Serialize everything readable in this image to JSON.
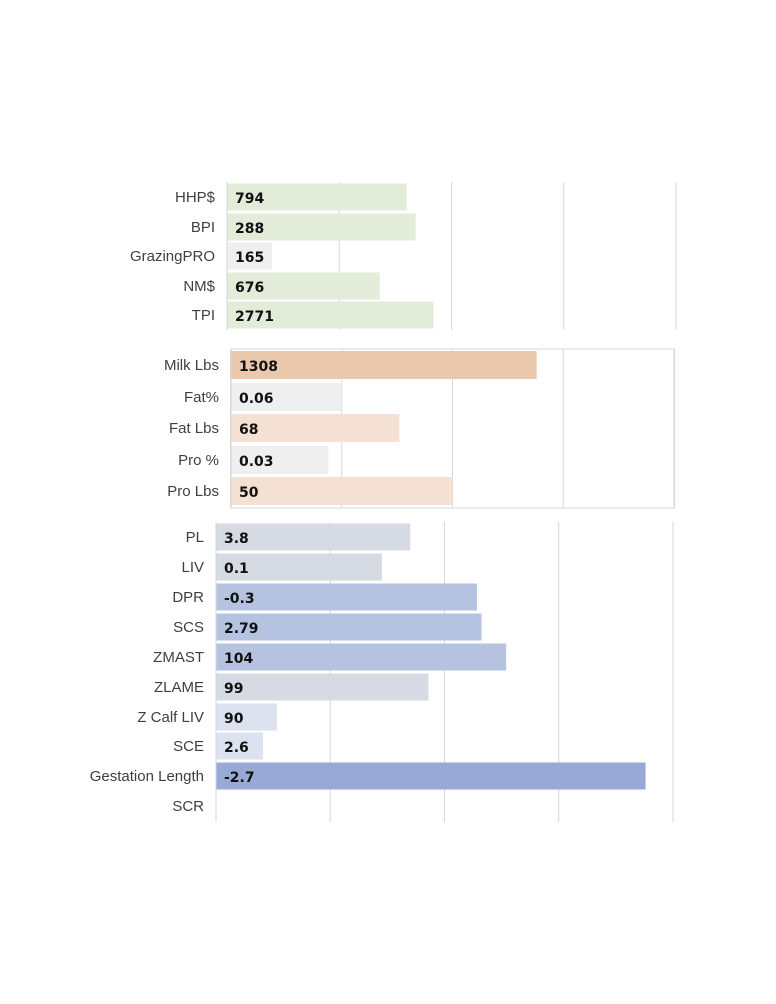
{
  "chart_data": [
    {
      "type": "bar",
      "orientation": "horizontal",
      "grid": true,
      "categories": [
        "HHP$",
        "BPI",
        "GrazingPRO",
        "NM$",
        "TPI"
      ],
      "values": [
        794,
        288,
        165,
        676,
        2771
      ],
      "labels": [
        "794",
        "288",
        "165",
        "676",
        "2771"
      ],
      "bar_fraction": [
        0.4,
        0.42,
        0.1,
        0.34,
        0.46
      ],
      "colors": [
        "#e2ecd9",
        "#e2ecd9",
        "#efefef",
        "#e2ecd9",
        "#e2ecd9"
      ]
    },
    {
      "type": "bar",
      "orientation": "horizontal",
      "grid": true,
      "categories": [
        "Milk Lbs",
        "Fat%",
        "Fat Lbs",
        "Pro %",
        "Pro Lbs"
      ],
      "values": [
        1308,
        0.06,
        68,
        0.03,
        50
      ],
      "labels": [
        "1308",
        "0.06",
        "68",
        "0.03",
        "50"
      ],
      "bar_fraction": [
        0.69,
        0.25,
        0.38,
        0.22,
        0.5
      ],
      "colors": [
        "#eac8ab",
        "#efefef",
        "#f4e1d3",
        "#efefef",
        "#f4e1d3"
      ]
    },
    {
      "type": "bar",
      "orientation": "horizontal",
      "grid": true,
      "categories": [
        "PL",
        "LIV",
        "DPR",
        "SCS",
        "ZMAST",
        "ZLAME",
        "Z Calf LIV",
        "SCE",
        "Gestation Length",
        "SCR"
      ],
      "values": [
        3.8,
        0.1,
        -0.3,
        2.79,
        104,
        99,
        90,
        2.6,
        -2.7,
        null
      ],
      "labels": [
        "3.8",
        "0.1",
        "-0.3",
        "2.79",
        "104",
        "99",
        "90",
        "2.6",
        "-2.7",
        ""
      ],
      "bar_fraction": [
        0.425,
        0.363,
        0.571,
        0.581,
        0.635,
        0.465,
        0.133,
        0.103,
        0.94,
        0
      ],
      "colors": [
        "#d6dae2",
        "#d6dae2",
        "#b5c3e0",
        "#b5c3e0",
        "#b5c3e0",
        "#d6dae2",
        "#dde2f0",
        "#dde2f0",
        "#97a9d4",
        "#ffffff"
      ]
    }
  ],
  "colors": {
    "grid": "#d7d7d7",
    "frame": "#d7d7d7",
    "label_text": "#3f3f3f",
    "value_text": "#111111"
  }
}
